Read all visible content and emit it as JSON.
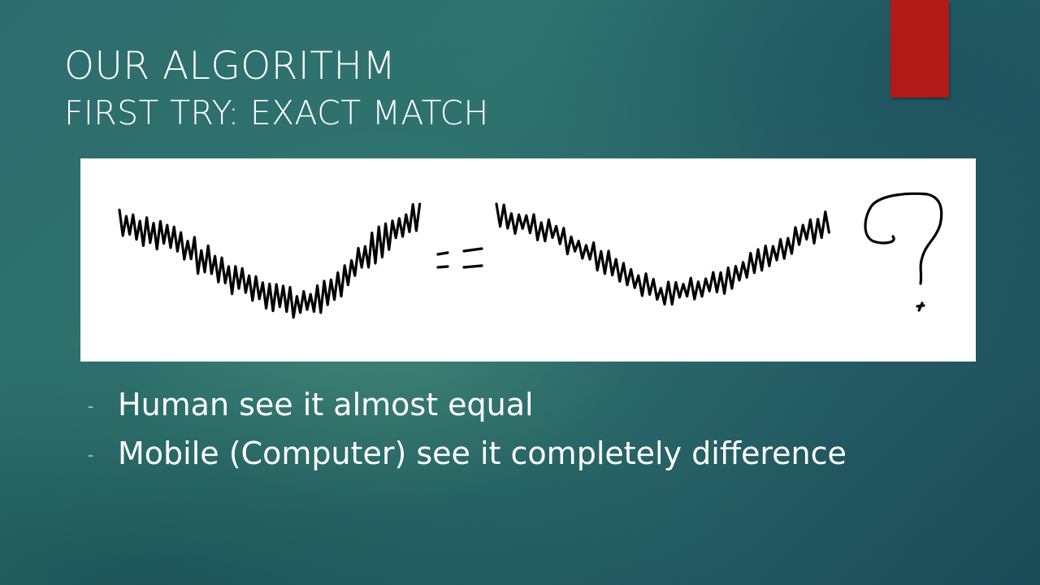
{
  "slide": {
    "title": "OUR ALGORITHM",
    "subtitle": "FIRST TRY: EXACT MATCH",
    "accent_color": "#b11a17",
    "figure": {
      "description_icons": [
        "handwritten-waveform-left",
        "handwritten-equals-sign",
        "handwritten-waveform-right",
        "handwritten-question-mark"
      ]
    },
    "bullets": [
      {
        "marker": "-",
        "text": "Human see it almost equal"
      },
      {
        "marker": "-",
        "text": "Mobile (Computer) see it completely difference"
      }
    ]
  }
}
